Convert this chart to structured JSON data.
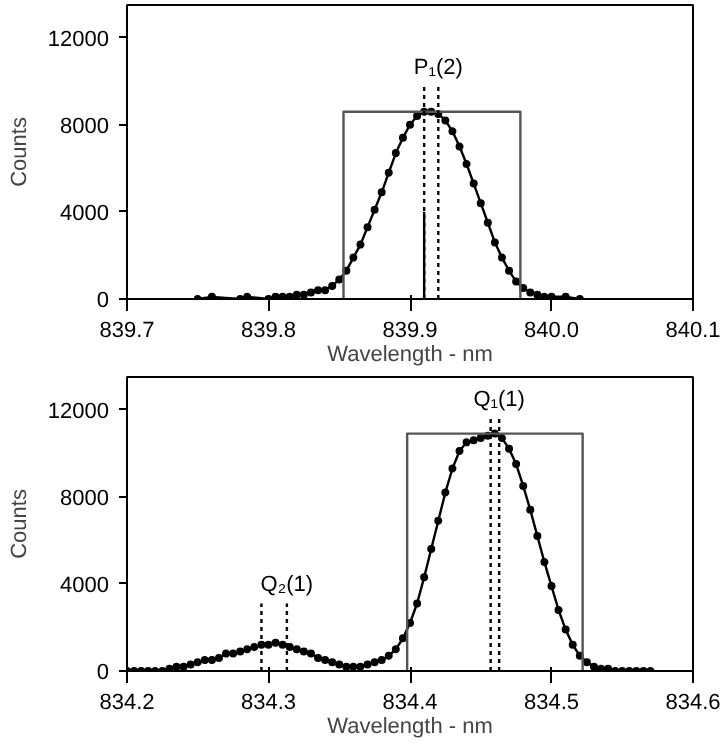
{
  "chart_data": [
    {
      "type": "line",
      "xlabel": "Wavelength - nm",
      "ylabel": "Counts",
      "xlim": [
        839.7,
        840.1
      ],
      "xticks": [
        {
          "value": 839.7,
          "label": "839.7"
        },
        {
          "value": 839.8,
          "label": "839.8"
        },
        {
          "value": 839.9,
          "label": "839.9"
        },
        {
          "value": 840.0,
          "label": "840.0"
        },
        {
          "value": 840.1,
          "label": "840.1"
        }
      ],
      "ylim": [
        0,
        13500
      ],
      "yticks": [
        0,
        4000,
        8000,
        12000
      ],
      "annotations": [
        {
          "text": "P₁(2)",
          "x": 839.92,
          "y": 9800
        }
      ],
      "series": [
        {
          "color": "#000000",
          "marker": "circle",
          "line_style": "solid",
          "x": [
            839.75,
            839.76,
            839.78,
            839.785,
            839.8,
            839.805,
            839.81,
            839.815,
            839.82,
            839.825,
            839.83,
            839.835,
            839.84,
            839.845,
            839.85,
            839.855,
            839.86,
            839.865,
            839.87,
            839.875,
            839.88,
            839.885,
            839.89,
            839.895,
            839.9,
            839.905,
            839.91,
            839.915,
            839.92,
            839.925,
            839.93,
            839.935,
            839.94,
            839.945,
            839.95,
            839.955,
            839.96,
            839.965,
            839.97,
            839.975,
            839.98,
            839.985,
            839.99,
            839.995,
            840.0,
            840.01,
            840.02
          ],
          "values": [
            0,
            100,
            0,
            100,
            0,
            100,
            100,
            100,
            200,
            200,
            300,
            400,
            400,
            600,
            900,
            1300,
            1900,
            2500,
            3300,
            4100,
            4900,
            5800,
            6700,
            7400,
            8000,
            8400,
            8600,
            8600,
            8500,
            8200,
            7700,
            7000,
            6200,
            5300,
            4400,
            3500,
            2600,
            1900,
            1300,
            800,
            500,
            300,
            200,
            100,
            100,
            100,
            0
          ]
        },
        {
          "color": "#555555",
          "marker": "none",
          "line_style": "solid",
          "x": [
            839.853,
            839.853,
            839.978,
            839.978
          ],
          "values": [
            0,
            8600,
            8600,
            0
          ]
        },
        {
          "color": "#000000",
          "marker": "none",
          "line_style": "dotted",
          "x": [
            839.91,
            839.91
          ],
          "values": [
            0,
            9800
          ]
        },
        {
          "color": "#000000",
          "marker": "none",
          "line_style": "dotted",
          "x": [
            839.92,
            839.92
          ],
          "values": [
            0,
            9800
          ]
        },
        {
          "color": "#000000",
          "marker": "none",
          "line_style": "solid",
          "x": [
            839.91,
            839.91
          ],
          "values": [
            0,
            4000
          ]
        }
      ]
    },
    {
      "type": "line",
      "xlabel": "Wavelength - nm",
      "ylabel": "Counts",
      "xlim": [
        834.2,
        834.6
      ],
      "xticks": [
        834.2,
        834.3,
        834.4,
        834.5,
        834.6
      ],
      "ylim": [
        0,
        13500
      ],
      "yticks": [
        0,
        4000,
        8000,
        12000
      ],
      "annotations": [
        {
          "text": "Q₁(1)",
          "x": 834.463,
          "y": 11600
        },
        {
          "text": "Q₂(1)",
          "x": 834.313,
          "y": 3100
        }
      ],
      "series": [
        {
          "color": "#000000",
          "marker": "circle",
          "line_style": "solid",
          "x": [
            834.2,
            834.205,
            834.21,
            834.215,
            834.22,
            834.225,
            834.23,
            834.235,
            834.24,
            834.245,
            834.25,
            834.255,
            834.26,
            834.265,
            834.27,
            834.275,
            834.28,
            834.285,
            834.29,
            834.295,
            834.3,
            834.305,
            834.31,
            834.315,
            834.32,
            834.325,
            834.33,
            834.335,
            834.34,
            834.345,
            834.35,
            834.355,
            834.36,
            834.365,
            834.37,
            834.375,
            834.38,
            834.385,
            834.39,
            834.395,
            834.4,
            834.405,
            834.41,
            834.415,
            834.42,
            834.425,
            834.43,
            834.435,
            834.44,
            834.445,
            834.45,
            834.455,
            834.46,
            834.465,
            834.47,
            834.475,
            834.48,
            834.485,
            834.49,
            834.495,
            834.5,
            834.505,
            834.51,
            834.515,
            834.52,
            834.525,
            834.53,
            834.535,
            834.54,
            834.545,
            834.55,
            834.555,
            834.56,
            834.565,
            834.57
          ],
          "values": [
            0,
            0,
            0,
            0,
            0,
            0,
            100,
            200,
            200,
            300,
            400,
            500,
            500,
            600,
            800,
            800,
            900,
            1000,
            1100,
            1200,
            1200,
            1300,
            1200,
            1100,
            1000,
            900,
            800,
            600,
            500,
            400,
            300,
            200,
            200,
            200,
            300,
            400,
            500,
            700,
            1000,
            1500,
            2200,
            3100,
            4300,
            5600,
            6900,
            8200,
            9300,
            10100,
            10500,
            10600,
            10700,
            10800,
            10900,
            10700,
            10200,
            9500,
            8500,
            7400,
            6200,
            5000,
            3900,
            2800,
            1900,
            1200,
            700,
            400,
            200,
            100,
            100,
            0,
            0,
            0,
            0,
            0,
            0
          ]
        },
        {
          "color": "#555555",
          "marker": "none",
          "line_style": "solid",
          "x": [
            834.398,
            834.398,
            834.522,
            834.522
          ],
          "values": [
            0,
            10900,
            10900,
            0
          ]
        },
        {
          "color": "#000000",
          "marker": "none",
          "line_style": "dotted",
          "x": [
            834.457,
            834.457
          ],
          "values": [
            0,
            11600
          ]
        },
        {
          "color": "#000000",
          "marker": "none",
          "line_style": "dotted",
          "x": [
            834.463,
            834.463
          ],
          "values": [
            0,
            11600
          ]
        },
        {
          "color": "#000000",
          "marker": "none",
          "line_style": "dotted",
          "x": [
            834.295,
            834.295
          ],
          "values": [
            0,
            3100
          ]
        },
        {
          "color": "#000000",
          "marker": "none",
          "line_style": "dotted",
          "x": [
            834.313,
            834.313
          ],
          "values": [
            0,
            3100
          ]
        }
      ]
    }
  ]
}
